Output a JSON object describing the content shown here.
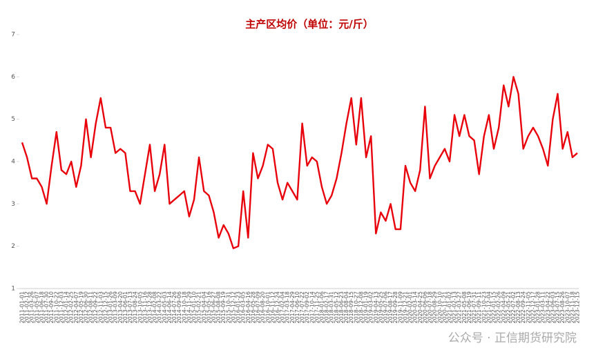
{
  "chart_data": {
    "type": "line",
    "title": "主产区均价（单位：元/斤）",
    "categories": [
      "2011-01-01",
      "2011-02-12",
      "2011-03-26",
      "2011-05-07",
      "2011-06-18",
      "2011-07-30",
      "2011-09-10",
      "2011-10-22",
      "2011-12-03",
      "2012-01-14",
      "2012-02-25",
      "2012-04-07",
      "2012-05-19",
      "2012-06-30",
      "2012-08-11",
      "2012-09-22",
      "2012-11-03",
      "2012-12-15",
      "2013-01-26",
      "2013-03-09",
      "2013-04-20",
      "2013-06-01",
      "2013-07-13",
      "2013-08-24",
      "2013-10-05",
      "2013-11-16",
      "2013-12-28",
      "2014-02-08",
      "2014-03-22",
      "2014-05-03",
      "2014-06-14",
      "2014-07-26",
      "2014-09-06",
      "2014-10-18",
      "2014-11-29",
      "2015-01-10",
      "2015-02-21",
      "2015-04-04",
      "2015-05-16",
      "2015-06-27",
      "2015-08-08",
      "2015-09-19",
      "2015-10-31",
      "2015-12-12",
      "2016-01-23",
      "2016-03-05",
      "2016-04-16",
      "2016-05-28",
      "2016-07-09",
      "2016-08-20",
      "2016-10-01",
      "2016-11-12",
      "2016-12-24",
      "2017-02-04",
      "2017-03-18",
      "2017-04-29",
      "2017-06-10",
      "2017-07-22",
      "2017-09-02",
      "2017-10-14",
      "2017-11-25",
      "2018-01-06",
      "2018-02-17",
      "2018-03-31",
      "2018-05-12",
      "2018-06-23",
      "2018-08-04",
      "2018-09-15",
      "2018-10-27",
      "2018-12-08",
      "2019-01-19",
      "2019-03-02",
      "2019-04-13",
      "2019-05-25",
      "2019-07-06",
      "2019-08-17",
      "2019-09-28",
      "2019-11-09",
      "2019-12-21",
      "2020-02-01",
      "2020-03-14",
      "2020-04-25",
      "2020-06-06",
      "2020-07-18",
      "2020-08-29",
      "2020-10-10",
      "2020-11-21",
      "2021-01-02",
      "2021-02-13",
      "2021-03-27",
      "2021-05-08",
      "2021-06-19",
      "2021-07-31",
      "2021-09-11",
      "2021-10-23",
      "2021-12-04",
      "2022-01-15",
      "2022-02-26",
      "2022-04-09",
      "2022-05-21",
      "2022-07-02",
      "2022-08-13",
      "2022-09-24",
      "2022-11-05",
      "2022-12-17",
      "2023-01-28",
      "2023-03-11",
      "2023-04-22",
      "2023-06-03",
      "2023-07-15",
      "2023-08-26",
      "2023-10-07",
      "2023-11-18",
      "2023-12-15"
    ],
    "series": [
      {
        "color": "#e8000b",
        "values": [
          4.45,
          4.1,
          3.6,
          3.6,
          3.4,
          3.0,
          3.9,
          4.7,
          3.8,
          3.7,
          4.0,
          3.4,
          3.9,
          5.0,
          4.1,
          4.9,
          5.5,
          4.8,
          4.8,
          4.2,
          4.3,
          4.2,
          3.3,
          3.3,
          3.0,
          3.7,
          4.4,
          3.3,
          3.7,
          4.4,
          3.0,
          3.1,
          3.2,
          3.3,
          2.7,
          3.1,
          4.1,
          3.3,
          3.2,
          2.8,
          2.2,
          2.5,
          2.3,
          1.95,
          2.0,
          3.3,
          2.2,
          4.2,
          3.6,
          3.9,
          4.4,
          4.3,
          3.5,
          3.1,
          3.5,
          3.3,
          3.1,
          4.9,
          3.9,
          4.1,
          4.0,
          3.4,
          3.0,
          3.2,
          3.6,
          4.2,
          4.9,
          5.5,
          4.4,
          5.5,
          4.1,
          4.6,
          2.3,
          2.8,
          2.6,
          3.0,
          2.4,
          2.4,
          3.9,
          3.5,
          3.3,
          3.8,
          5.3,
          3.6,
          3.9,
          4.1,
          4.3,
          4.0,
          5.1,
          4.6,
          5.1,
          4.6,
          4.5,
          3.7,
          4.6,
          5.1,
          4.3,
          4.8,
          5.8,
          5.3,
          6.0,
          5.6,
          4.3,
          4.6,
          4.8,
          4.6,
          4.3,
          3.9,
          5.0,
          5.6,
          4.3,
          4.7,
          4.1,
          4.2
        ]
      }
    ],
    "ylim": [
      1,
      7
    ],
    "yticks": [
      1,
      2,
      3,
      4,
      5,
      6,
      7
    ],
    "grid": false,
    "watermark": "公众号 · 正信期货研究院"
  }
}
